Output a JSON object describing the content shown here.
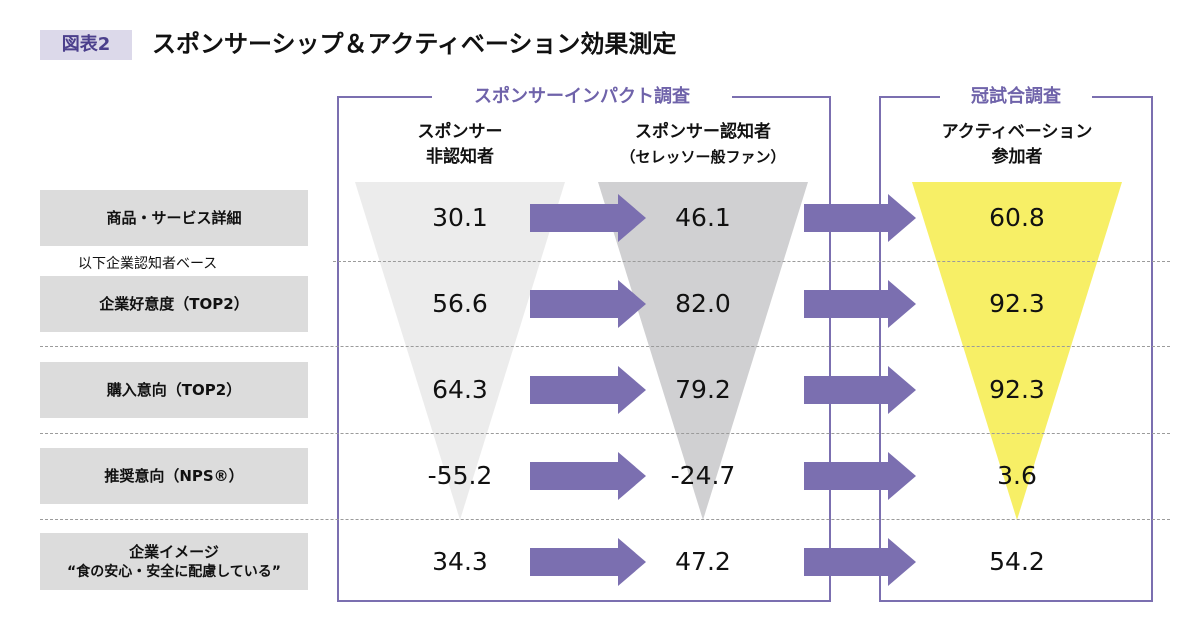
{
  "figure_label": "図表2",
  "title": "スポンサーシップ＆アクティベーション効果測定",
  "groups": {
    "impact_survey": "スポンサーインパクト調査",
    "crown_survey": "冠試合調査"
  },
  "columns": [
    {
      "line1": "スポンサー",
      "line2": "非認知者"
    },
    {
      "line1": "スポンサー認知者",
      "line2": "（セレッソー般ファン）"
    },
    {
      "line1": "アクティベーション",
      "line2": "参加者"
    }
  ],
  "base_note": "以下企業認知者ベース",
  "rows": [
    {
      "label": "商品・サービス詳細",
      "label2": "",
      "values": [
        "30.1",
        "46.1",
        "60.8"
      ]
    },
    {
      "label": "企業好意度（TOP2）",
      "label2": "",
      "values": [
        "56.6",
        "82.0",
        "92.3"
      ]
    },
    {
      "label": "購入意向（TOP2）",
      "label2": "",
      "values": [
        "64.3",
        "79.2",
        "92.3"
      ]
    },
    {
      "label": "推奨意向（NPS®）",
      "label2": "",
      "values": [
        "-55.2",
        "-24.7",
        "3.6"
      ]
    },
    {
      "label": "企業イメージ",
      "label2": "“食の安心・安全に配慮している”",
      "values": [
        "34.3",
        "47.2",
        "54.2"
      ]
    }
  ],
  "colors": {
    "arrow": "#7b6fb0",
    "funnel_non_aware": "#ececec",
    "funnel_aware": "#d0d0d2",
    "funnel_participant": "#f7ef66",
    "label_bg": "#dcdcdc",
    "accent": "#6f63aa"
  }
}
